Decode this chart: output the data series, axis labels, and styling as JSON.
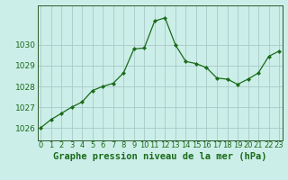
{
  "x": [
    0,
    1,
    2,
    3,
    4,
    5,
    6,
    7,
    8,
    9,
    10,
    11,
    12,
    13,
    14,
    15,
    16,
    17,
    18,
    19,
    20,
    21,
    22,
    23
  ],
  "y": [
    1026.0,
    1026.4,
    1026.7,
    1027.0,
    1027.25,
    1027.8,
    1028.0,
    1028.15,
    1028.65,
    1029.8,
    1029.85,
    1031.15,
    1031.3,
    1030.0,
    1029.2,
    1029.1,
    1028.9,
    1028.4,
    1028.35,
    1028.1,
    1028.35,
    1028.65,
    1029.45,
    1029.7
  ],
  "line_color": "#1a6b1a",
  "marker_color": "#1a6b1a",
  "bg_color": "#cceee8",
  "grid_color": "#aac8c8",
  "axis_color": "#2d5a2d",
  "title": "Graphe pression niveau de la mer (hPa)",
  "xlabel_ticks": [
    "0",
    "1",
    "2",
    "3",
    "4",
    "5",
    "6",
    "7",
    "8",
    "9",
    "10",
    "11",
    "12",
    "13",
    "14",
    "15",
    "16",
    "17",
    "18",
    "19",
    "20",
    "21",
    "22",
    "23"
  ],
  "yticks": [
    1026,
    1027,
    1028,
    1029,
    1030
  ],
  "ylim": [
    1025.4,
    1031.9
  ],
  "xlim": [
    -0.3,
    23.3
  ],
  "tick_label_color": "#1a6b1a",
  "title_color": "#1a6b1a",
  "title_fontsize": 7.5,
  "tick_fontsize": 6.5
}
